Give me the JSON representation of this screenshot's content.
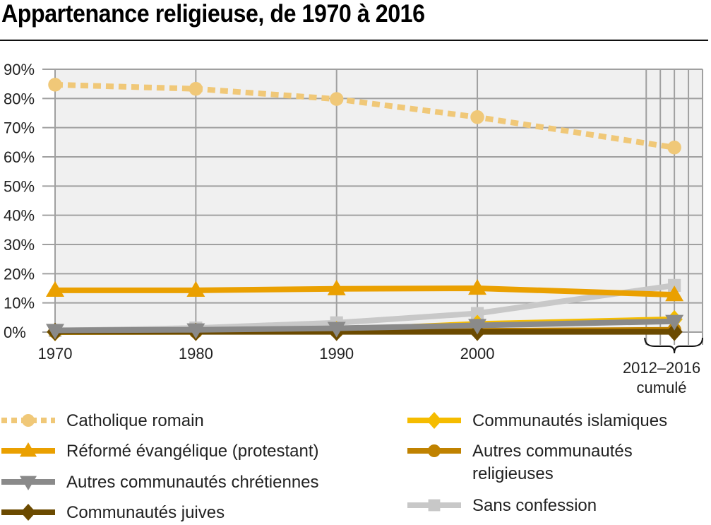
{
  "title": "Appartenance religieuse, de 1970 à 2016",
  "chart_data": {
    "type": "line",
    "title": "Appartenance religieuse, de 1970 à 2016",
    "xlabel": "",
    "ylabel": "",
    "x_ticks": [
      "1970",
      "1980",
      "1990",
      "2000"
    ],
    "x_extra_label": [
      "2012–2016",
      "cumulé"
    ],
    "x_extra_years": [
      2012,
      2013,
      2014,
      2015,
      2016
    ],
    "x": [
      1970,
      1980,
      1990,
      2000,
      2014
    ],
    "y_ticks": [
      "0%",
      "10%",
      "20%",
      "30%",
      "40%",
      "50%",
      "60%",
      "70%",
      "80%",
      "90%"
    ],
    "ylim": [
      0,
      90
    ],
    "y_unit": "%",
    "grid": true,
    "legend_position": "bottom",
    "series": [
      {
        "name": "Catholique romain",
        "color": "#f0c878",
        "marker": "circle",
        "dash": true,
        "values": [
          84.7,
          83.3,
          79.8,
          73.6,
          63.2
        ]
      },
      {
        "name": "Réformé évangélique (protestant)",
        "color": "#eaa000",
        "marker": "triangle-up",
        "dash": false,
        "values": [
          14.3,
          14.3,
          14.8,
          15.0,
          12.8
        ]
      },
      {
        "name": "Autres communautés chrétiennes",
        "color": "#8a8a8a",
        "marker": "triangle-down",
        "dash": false,
        "values": [
          0.6,
          0.8,
          1.3,
          2.3,
          3.7
        ]
      },
      {
        "name": "Communautés juives",
        "color": "#6b4a00",
        "marker": "diamond",
        "dash": false,
        "values": [
          0.1,
          0.1,
          0.1,
          0.1,
          0.1
        ]
      },
      {
        "name": "Communautés islamiques",
        "color": "#f5bc00",
        "marker": "diamond",
        "dash": false,
        "values": [
          0.0,
          0.1,
          0.7,
          2.8,
          4.4
        ]
      },
      {
        "name": "Autres communautés religieuses",
        "color": "#c08200",
        "marker": "circle",
        "dash": false,
        "values": [
          0.2,
          0.2,
          0.3,
          0.4,
          0.8
        ]
      },
      {
        "name": "Sans confession",
        "color": "#c8c8c8",
        "marker": "square",
        "dash": false,
        "values": [
          0.5,
          1.4,
          3.2,
          6.4,
          16.0
        ]
      }
    ]
  },
  "legend": {
    "left": [
      {
        "label": "Catholique romain",
        "series": 0
      },
      {
        "label": "Réformé évangélique (protestant)",
        "series": 1
      },
      {
        "label": "Autres communautés chrétiennes",
        "series": 2
      },
      {
        "label": "Communautés juives",
        "series": 3
      }
    ],
    "right": [
      {
        "label": "Communautés islamiques",
        "series": 4
      },
      {
        "label": "Autres communautés religieuses",
        "lines": [
          "Autres communautés",
          "religieuses"
        ],
        "series": 5
      },
      {
        "label": "Sans confession",
        "series": 6
      }
    ]
  }
}
